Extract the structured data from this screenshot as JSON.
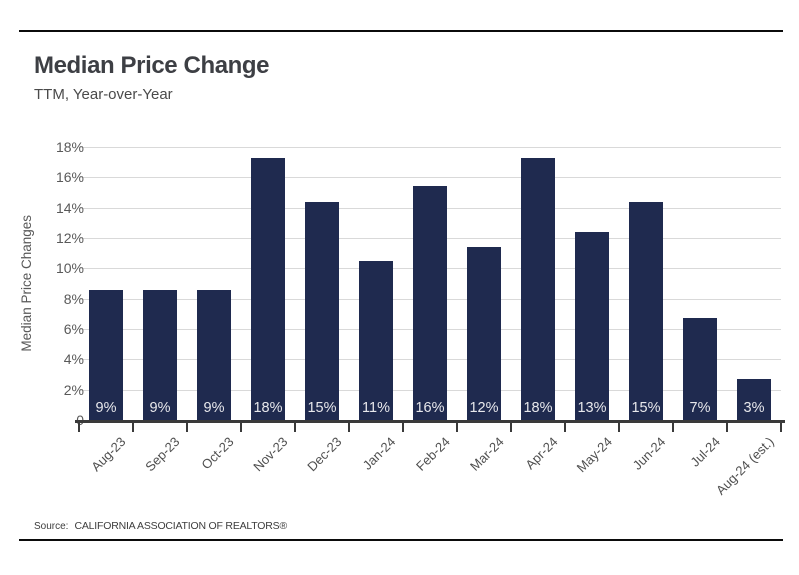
{
  "header": {
    "title": "Median Price Change",
    "subtitle": "TTM, Year-over-Year"
  },
  "chart_data": {
    "type": "bar",
    "title": "Median Price Change",
    "subtitle": "TTM, Year-over-Year",
    "categories": [
      "Aug-23",
      "Sep-23",
      "Oct-23",
      "Nov-23",
      "Dec-23",
      "Jan-24",
      "Feb-24",
      "Mar-24",
      "Apr-24",
      "May-24",
      "Jun-24",
      "Jul-24",
      "Aug-24 (est.)"
    ],
    "values": [
      9,
      9,
      9,
      18,
      15,
      11,
      16,
      12,
      18,
      13,
      15,
      7,
      3
    ],
    "value_labels": [
      "9%",
      "9%",
      "9%",
      "18%",
      "15%",
      "11%",
      "16%",
      "12%",
      "18%",
      "13%",
      "15%",
      "7%",
      "3%"
    ],
    "bar_heights_est_pct": [
      8.6,
      8.6,
      8.6,
      17.3,
      14.4,
      10.5,
      15.4,
      11.4,
      17.3,
      12.4,
      14.4,
      6.7,
      2.7
    ],
    "xlabel": "",
    "ylabel": "Median Price Changes",
    "ylim": [
      0,
      18
    ],
    "yticks": [
      0,
      2,
      4,
      6,
      8,
      10,
      12,
      14,
      16,
      18
    ],
    "ytick_labels": [
      "0",
      "2%",
      "4%",
      "6%",
      "8%",
      "10%",
      "12%",
      "14%",
      "16%",
      "18%"
    ],
    "grid": "horizontal",
    "legend": "none",
    "bar_color": "#1f2a4f",
    "bar_label_color": "#e8e8ec",
    "gridline_color": "#d9d9d9",
    "axis_line_color": "#3a3a3a",
    "tick_label_color": "#595959"
  },
  "footer": {
    "source_label": "Source:",
    "source_text": "CALIFORNIA ASSOCIATION OF REALTORS®"
  }
}
